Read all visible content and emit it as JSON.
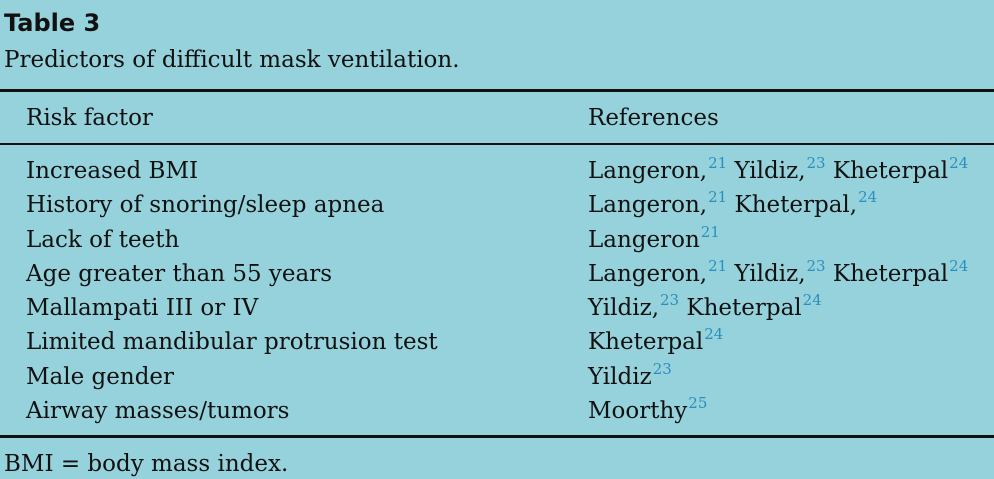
{
  "table": {
    "title": "Table 3",
    "caption": "Predictors of difficult mask ventilation.",
    "headers": [
      "Risk factor",
      "References"
    ],
    "rows": [
      {
        "factor": "Increased BMI",
        "refs": [
          {
            "name": "Langeron,",
            "num": "21"
          },
          {
            "name": " Yildiz,",
            "num": "23"
          },
          {
            "name": " Kheterpal",
            "num": "24"
          }
        ]
      },
      {
        "factor": "History of snoring/sleep apnea",
        "refs": [
          {
            "name": "Langeron,",
            "num": "21"
          },
          {
            "name": " Kheterpal,",
            "num": "24"
          }
        ]
      },
      {
        "factor": "Lack of teeth",
        "refs": [
          {
            "name": "Langeron",
            "num": "21"
          }
        ]
      },
      {
        "factor": "Age greater than 55 years",
        "refs": [
          {
            "name": "Langeron,",
            "num": "21"
          },
          {
            "name": " Yildiz,",
            "num": "23"
          },
          {
            "name": " Kheterpal",
            "num": "24"
          }
        ]
      },
      {
        "factor": "Mallampati III or IV",
        "refs": [
          {
            "name": "Yildiz,",
            "num": "23"
          },
          {
            "name": " Kheterpal",
            "num": "24"
          }
        ]
      },
      {
        "factor": "Limited mandibular protrusion test",
        "refs": [
          {
            "name": "Kheterpal",
            "num": "24"
          }
        ]
      },
      {
        "factor": "Male gender",
        "refs": [
          {
            "name": "Yildiz",
            "num": "23"
          }
        ]
      },
      {
        "factor": "Airway masses/tumors",
        "refs": [
          {
            "name": "Moorthy",
            "num": "25"
          }
        ]
      }
    ],
    "footnote": "BMI = body mass index."
  },
  "colors": {
    "background": "#96d2dc",
    "reference_link": "#2a8fbd",
    "text": "#111111"
  }
}
